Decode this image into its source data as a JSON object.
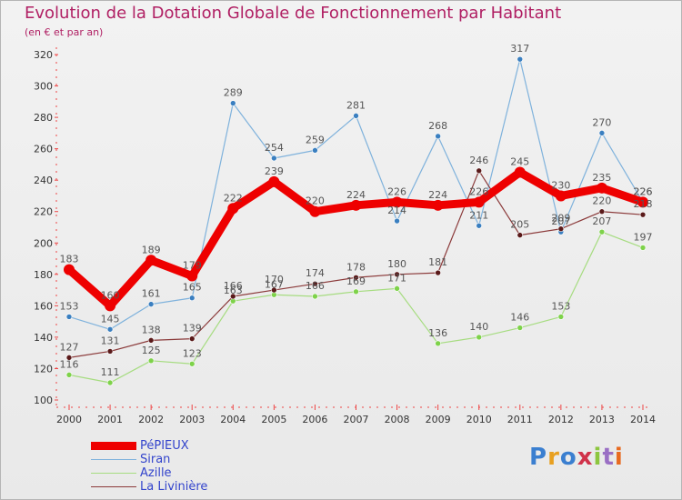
{
  "title": "Evolution de la Dotation Globale de Fonctionnement par Habitant",
  "subtitle": "(en € et par an)",
  "logo": {
    "parts": [
      "P",
      "r",
      "o",
      "x",
      "i",
      "t",
      "i"
    ]
  },
  "chart_data": {
    "type": "line",
    "title": "Evolution de la Dotation Globale de Fonctionnement par Habitant",
    "subtitle": "(en € et par an)",
    "xlabel": "",
    "ylabel": "",
    "x": [
      2000,
      2001,
      2002,
      2003,
      2004,
      2005,
      2006,
      2007,
      2008,
      2009,
      2010,
      2011,
      2012,
      2013,
      2014
    ],
    "ylim": [
      100,
      320
    ],
    "yticks": [
      100,
      120,
      140,
      160,
      180,
      200,
      220,
      240,
      260,
      280,
      300,
      320
    ],
    "grid": false,
    "legend_position": "bottom-left",
    "series": [
      {
        "name": "PéPIEUX",
        "color": "#ee0000",
        "width": 9,
        "point_radius": 6,
        "values": [
          183,
          160,
          189,
          179,
          222,
          239,
          220,
          224,
          226,
          224,
          226,
          245,
          230,
          235,
          226
        ]
      },
      {
        "name": "Siran",
        "color": "#7fb2dc",
        "point_color": "#3a7fc0",
        "width": 1.2,
        "point_radius": 3,
        "values": [
          153,
          145,
          161,
          165,
          289,
          254,
          259,
          281,
          214,
          268,
          211,
          317,
          207,
          270,
          226
        ]
      },
      {
        "name": "Azille",
        "color": "#a6dc80",
        "point_color": "#7ed24a",
        "width": 1.2,
        "point_radius": 3,
        "values": [
          116,
          111,
          125,
          123,
          163,
          167,
          166,
          169,
          171,
          136,
          140,
          146,
          153,
          207,
          197
        ]
      },
      {
        "name": "La Livinière",
        "color": "#8b3a3a",
        "point_color": "#5a1a1a",
        "width": 1.2,
        "point_radius": 3,
        "values": [
          127,
          131,
          138,
          139,
          166,
          170,
          174,
          178,
          180,
          181,
          246,
          205,
          209,
          220,
          218
        ]
      }
    ]
  }
}
